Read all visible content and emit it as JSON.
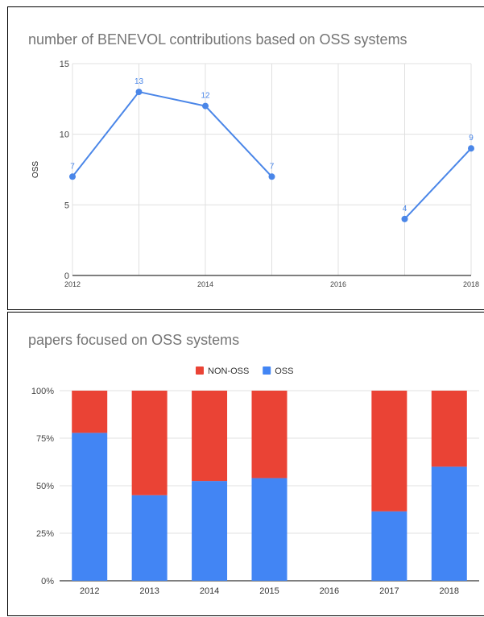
{
  "chart_data": [
    {
      "type": "line",
      "title": "number of BENEVOL contributions based on OSS systems",
      "xlabel": "",
      "ylabel": "OSS",
      "x_ticks": [
        2012,
        2014,
        2016,
        2018
      ],
      "y_ticks": [
        0,
        5,
        10,
        15
      ],
      "xlim": [
        2012,
        2018
      ],
      "ylim": [
        0,
        15
      ],
      "grid": true,
      "color": "#4a86e8",
      "segments": [
        [
          {
            "x": 2012,
            "y": 7
          },
          {
            "x": 2013,
            "y": 13
          },
          {
            "x": 2014,
            "y": 12
          },
          {
            "x": 2015,
            "y": 7
          }
        ],
        [
          {
            "x": 2017,
            "y": 4
          },
          {
            "x": 2018,
            "y": 9
          }
        ]
      ],
      "data_labels": true
    },
    {
      "type": "bar",
      "stacked": "percent",
      "title": "papers focused on OSS systems",
      "categories": [
        "2012",
        "2013",
        "2014",
        "2015",
        "2016",
        "2017",
        "2018"
      ],
      "y_ticks": [
        "0%",
        "25%",
        "50%",
        "75%",
        "100%"
      ],
      "ylim": [
        0,
        100
      ],
      "legend_position": "top",
      "grid": true,
      "series": [
        {
          "name": "OSS",
          "color": "#4285f4",
          "values": [
            77.8,
            45,
            52.5,
            54,
            null,
            36.5,
            60
          ]
        },
        {
          "name": "NON-OSS",
          "color": "#ea4335",
          "values": [
            22.2,
            55,
            47.5,
            46,
            null,
            63.5,
            40
          ]
        }
      ],
      "legend_order": [
        "NON-OSS",
        "OSS"
      ]
    }
  ]
}
